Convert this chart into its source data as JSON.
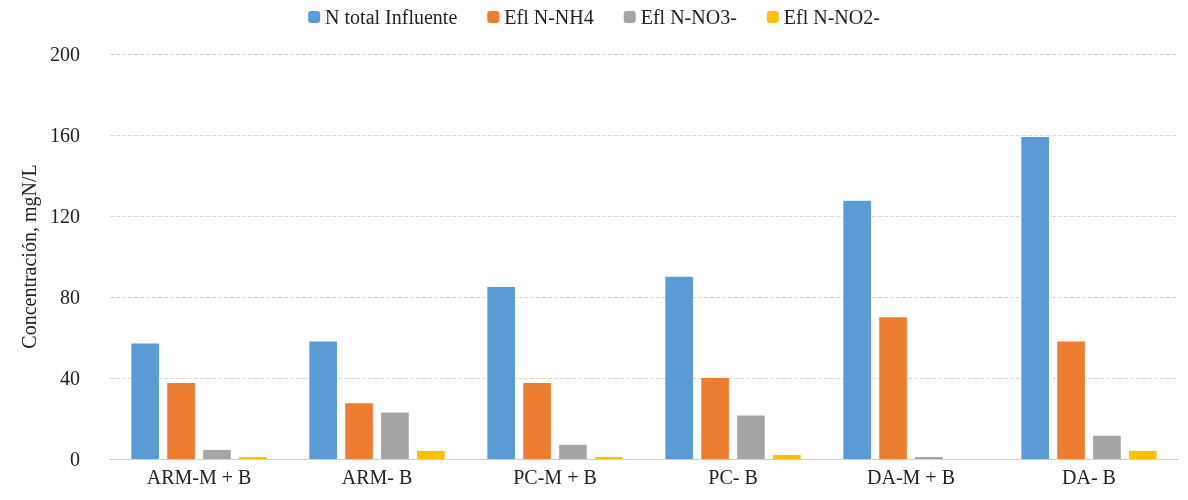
{
  "chart_data": {
    "type": "bar",
    "ylabel": "Concentración, mgN/L",
    "categories": [
      "ARM-M + B",
      "ARM- B",
      "PC-M + B",
      "PC- B",
      "DA-M + B",
      "DA- B"
    ],
    "series": [
      {
        "name": "N total Influente",
        "color": "#5b9bd5",
        "values": [
          57,
          58,
          85,
          90,
          127.5,
          159
        ]
      },
      {
        "name": "Efl N-NH4",
        "color": "#ed7d31",
        "values": [
          37.5,
          27.5,
          37.5,
          40,
          70,
          58
        ]
      },
      {
        "name": "Efl N-NO3-",
        "color": "#a5a5a5",
        "values": [
          4.5,
          23,
          7,
          21.5,
          1,
          11.5
        ]
      },
      {
        "name": "Efl N-NO2-",
        "color": "#ffc000",
        "values": [
          1,
          4,
          1,
          2,
          0,
          4
        ]
      }
    ],
    "ylim": [
      0,
      200
    ],
    "yticks": [
      0,
      40,
      80,
      120,
      160,
      200
    ],
    "grid": "y",
    "legend": "top"
  }
}
